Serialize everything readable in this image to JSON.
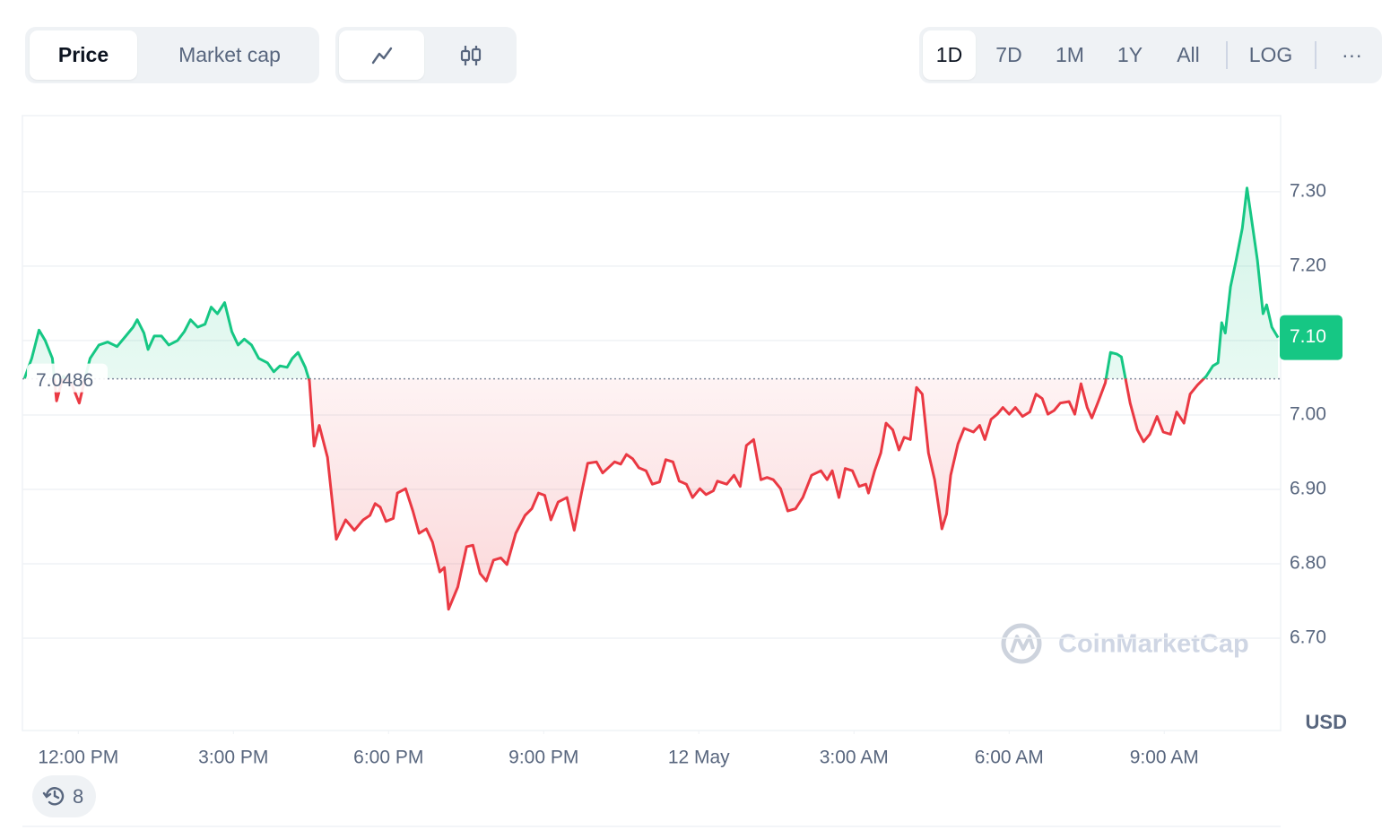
{
  "toolbar": {
    "price": "Price",
    "market_cap": "Market cap",
    "ranges": [
      "1D",
      "7D",
      "1M",
      "1Y",
      "All"
    ],
    "log": "LOG",
    "more": "···"
  },
  "history_count": "8",
  "chart_data": {
    "type": "line",
    "y_unit": "USD",
    "watermark": "CoinMarketCap",
    "colors": {
      "up": "#16c784",
      "down": "#ea3943"
    },
    "reference": {
      "value": 7.0486,
      "label": "7.0486"
    },
    "price_tag": {
      "value": 7.104,
      "label": "7.10"
    },
    "xlim": [
      10.92,
      35.25
    ],
    "xticks": [
      {
        "value": 12,
        "label": "12:00 PM"
      },
      {
        "value": 15,
        "label": "3:00 PM"
      },
      {
        "value": 18,
        "label": "6:00 PM"
      },
      {
        "value": 21,
        "label": "9:00 PM"
      },
      {
        "value": 24,
        "label": "12 May"
      },
      {
        "value": 27,
        "label": "3:00 AM"
      },
      {
        "value": 30,
        "label": "6:00 AM"
      },
      {
        "value": 33,
        "label": "9:00 AM"
      }
    ],
    "ylim": [
      6.576,
      7.401
    ],
    "yticks": [
      {
        "value": 6.7,
        "label": "6.70"
      },
      {
        "value": 6.8,
        "label": "6.80"
      },
      {
        "value": 6.9,
        "label": "6.90"
      },
      {
        "value": 7.0,
        "label": "7.00"
      },
      {
        "value": 7.1,
        "label": "7.10"
      },
      {
        "value": 7.2,
        "label": "7.20"
      },
      {
        "value": 7.3,
        "label": "7.30"
      }
    ],
    "grid": true,
    "x": [
      10.96,
      11.1,
      11.24,
      11.36,
      11.5,
      11.58,
      11.71,
      11.88,
      12.02,
      12.14,
      12.23,
      12.4,
      12.57,
      12.75,
      12.92,
      13.06,
      13.14,
      13.27,
      13.35,
      13.47,
      13.61,
      13.75,
      13.92,
      14.05,
      14.17,
      14.31,
      14.45,
      14.57,
      14.69,
      14.83,
      14.97,
      15.09,
      15.21,
      15.35,
      15.49,
      15.66,
      15.78,
      15.9,
      16.04,
      16.14,
      16.25,
      16.39,
      16.47,
      16.56,
      16.66,
      16.82,
      16.99,
      17.17,
      17.34,
      17.51,
      17.64,
      17.74,
      17.84,
      17.95,
      18.09,
      18.17,
      18.33,
      18.47,
      18.59,
      18.73,
      18.85,
      18.99,
      19.08,
      19.16,
      19.34,
      19.51,
      19.63,
      19.77,
      19.89,
      20.03,
      20.17,
      20.29,
      20.46,
      20.64,
      20.77,
      20.9,
      21.02,
      21.14,
      21.28,
      21.45,
      21.59,
      21.73,
      21.85,
      22.02,
      22.14,
      22.28,
      22.37,
      22.49,
      22.6,
      22.72,
      22.84,
      22.98,
      23.1,
      23.24,
      23.36,
      23.5,
      23.62,
      23.76,
      23.88,
      24.02,
      24.14,
      24.28,
      24.36,
      24.54,
      24.68,
      24.8,
      24.92,
      25.06,
      25.2,
      25.32,
      25.44,
      25.58,
      25.72,
      25.87,
      26.01,
      26.18,
      26.36,
      26.48,
      26.58,
      26.71,
      26.83,
      26.97,
      27.1,
      27.23,
      27.28,
      27.4,
      27.52,
      27.62,
      27.75,
      27.87,
      27.97,
      28.09,
      28.21,
      28.32,
      28.44,
      28.56,
      28.7,
      28.79,
      28.87,
      29.01,
      29.13,
      29.31,
      29.43,
      29.53,
      29.65,
      29.77,
      29.88,
      30.0,
      30.12,
      30.26,
      30.4,
      30.52,
      30.64,
      30.75,
      30.87,
      30.99,
      31.16,
      31.27,
      31.39,
      31.51,
      31.6,
      31.73,
      31.86,
      31.96,
      32.08,
      32.17,
      32.34,
      32.48,
      32.6,
      32.72,
      32.86,
      32.98,
      33.12,
      33.24,
      33.38,
      33.5,
      33.64,
      33.81,
      33.94,
      34.04,
      34.11,
      34.18,
      34.28,
      34.39,
      34.51,
      34.6,
      34.7,
      34.8,
      34.91,
      34.98,
      35.08,
      35.2
    ],
    "values": [
      7.049,
      7.076,
      7.114,
      7.1,
      7.076,
      7.019,
      7.052,
      7.04,
      7.016,
      7.052,
      7.076,
      7.094,
      7.098,
      7.092,
      7.106,
      7.118,
      7.128,
      7.11,
      7.088,
      7.106,
      7.106,
      7.094,
      7.1,
      7.112,
      7.128,
      7.118,
      7.122,
      7.145,
      7.136,
      7.151,
      7.112,
      7.094,
      7.102,
      7.094,
      7.076,
      7.07,
      7.058,
      7.066,
      7.064,
      7.076,
      7.084,
      7.064,
      7.046,
      6.958,
      6.986,
      6.943,
      6.833,
      6.859,
      6.845,
      6.859,
      6.865,
      6.881,
      6.876,
      6.857,
      6.861,
      6.895,
      6.901,
      6.871,
      6.841,
      6.847,
      6.829,
      6.789,
      6.795,
      6.739,
      6.769,
      6.823,
      6.825,
      6.787,
      6.777,
      6.805,
      6.808,
      6.799,
      6.841,
      6.865,
      6.874,
      6.895,
      6.892,
      6.859,
      6.883,
      6.889,
      6.845,
      6.895,
      6.935,
      6.937,
      6.922,
      6.931,
      6.937,
      6.934,
      6.947,
      6.941,
      6.929,
      6.925,
      6.907,
      6.91,
      6.94,
      6.937,
      6.911,
      6.907,
      6.889,
      6.901,
      6.893,
      6.898,
      6.911,
      6.907,
      6.919,
      6.904,
      6.959,
      6.967,
      6.913,
      6.916,
      6.913,
      6.901,
      6.871,
      6.874,
      6.889,
      6.919,
      6.925,
      6.913,
      6.925,
      6.889,
      6.928,
      6.925,
      6.904,
      6.907,
      6.895,
      6.925,
      6.949,
      6.989,
      6.98,
      6.953,
      6.97,
      6.967,
      7.037,
      7.028,
      6.949,
      6.913,
      6.847,
      6.867,
      6.919,
      6.961,
      6.982,
      6.977,
      6.986,
      6.967,
      6.994,
      7.001,
      7.01,
      7.001,
      7.01,
      6.998,
      7.004,
      7.028,
      7.022,
      7.001,
      7.006,
      7.016,
      7.018,
      7.001,
      7.042,
      7.01,
      6.996,
      7.019,
      7.043,
      7.084,
      7.082,
      7.078,
      7.016,
      6.98,
      6.964,
      6.974,
      6.998,
      6.977,
      6.974,
      7.004,
      6.989,
      7.028,
      7.04,
      7.052,
      7.066,
      7.07,
      7.124,
      7.11,
      7.172,
      7.208,
      7.251,
      7.305,
      7.257,
      7.208,
      7.136,
      7.148,
      7.118,
      7.104
    ]
  }
}
